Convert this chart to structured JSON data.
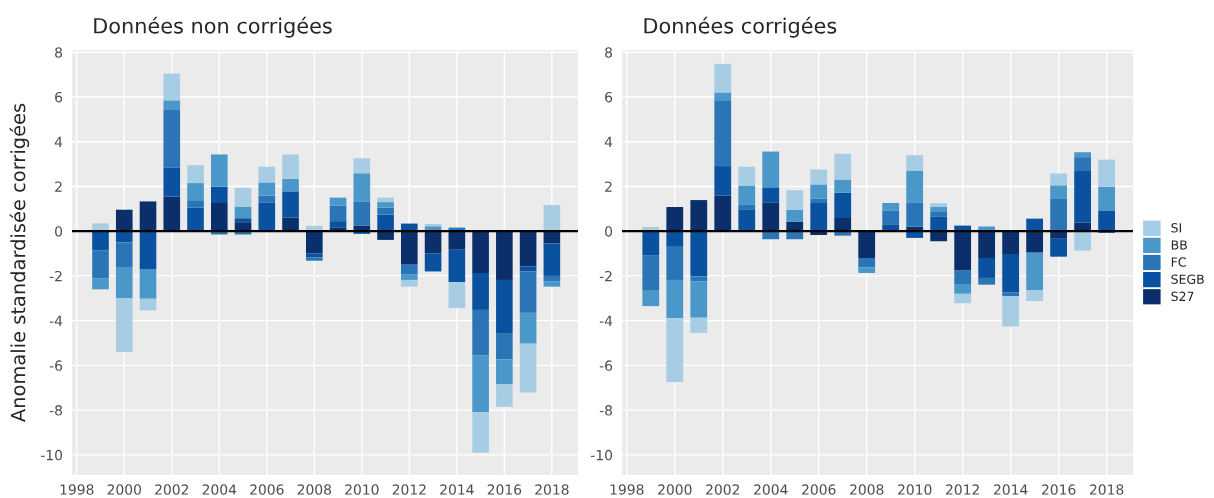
{
  "chart_data": [
    {
      "type": "bar",
      "title": "Données non corrigées",
      "ylabel": "Anomalie standardisée corrigées",
      "stacked": true,
      "grid": true,
      "x": [
        1999,
        2000,
        2001,
        2002,
        2003,
        2004,
        2005,
        2006,
        2007,
        2008,
        2009,
        2010,
        2011,
        2012,
        2013,
        2014,
        2015,
        2016,
        2017,
        2018
      ],
      "xlim": [
        1997.8,
        2019.1
      ],
      "xticks": [
        1998,
        2000,
        2002,
        2004,
        2006,
        2008,
        2010,
        2012,
        2014,
        2016,
        2018
      ],
      "ylim": [
        -10.9,
        8.1
      ],
      "yticks": [
        -10,
        -8,
        -6,
        -4,
        -2,
        0,
        2,
        4,
        6,
        8
      ],
      "ref_lines": [
        {
          "axis": "y",
          "value": 0,
          "color": "#000000"
        }
      ],
      "series": [
        {
          "color": "#0b2f6b",
          "values": [
            0,
            0.96,
            1.33,
            1.55,
            0,
            1.26,
            0.4,
            null,
            0.61,
            -1.0,
            0.15,
            0.24,
            -0.39,
            -1.5,
            -1.0,
            -0.83,
            -1.87,
            -2.18,
            -1.57,
            -0.55
          ]
        },
        {
          "color": "#0a52a0",
          "values": [
            -0.85,
            -0.5,
            -1.72,
            1.3,
            1.05,
            0.73,
            0.18,
            1.29,
            1.17,
            -0.17,
            0.3,
            -0.12,
            0.74,
            0.34,
            -0.8,
            -1.45,
            -1.65,
            -2.4,
            -0.23,
            -1.45
          ]
        },
        {
          "color": "#2b75b6",
          "values": [
            -1.25,
            -1.1,
            0,
            2.6,
            0.3,
            -0.15,
            -0.15,
            0.3,
            0,
            -0.15,
            0.7,
            1.07,
            0.31,
            -0.42,
            0,
            0.16,
            -2.03,
            -1.15,
            -1.85,
            -0.24
          ]
        },
        {
          "color": "#4a97c9",
          "values": [
            -0.5,
            -1.4,
            -1.3,
            0.4,
            0.8,
            1.44,
            0.5,
            0.59,
            0.56,
            0,
            0.35,
            1.28,
            0.25,
            -0.26,
            0.22,
            0,
            -2.55,
            -1.12,
            -1.38,
            -0.24
          ]
        },
        {
          "color": "#a6cde3",
          "values": [
            0.35,
            -2.4,
            -0.52,
            1.2,
            0.8,
            0,
            0.86,
            0.7,
            1.09,
            0.24,
            0,
            0.67,
            0.2,
            -0.3,
            0.1,
            -1.16,
            -1.8,
            -1.0,
            -2.18,
            1.17
          ]
        }
      ]
    },
    {
      "type": "bar",
      "title": "Données corrigées",
      "stacked": true,
      "grid": true,
      "legend": "right",
      "x": [
        1999,
        2000,
        2001,
        2002,
        2003,
        2004,
        2005,
        2006,
        2007,
        2008,
        2009,
        2010,
        2011,
        2012,
        2013,
        2014,
        2015,
        2016,
        2017,
        2018
      ],
      "xlim": [
        1997.8,
        2019.1
      ],
      "xticks": [
        1998,
        2000,
        2002,
        2004,
        2006,
        2008,
        2010,
        2012,
        2014,
        2016,
        2018
      ],
      "ylim": [
        -10.9,
        8.1
      ],
      "yticks": [
        -10,
        -8,
        -6,
        -4,
        -2,
        0,
        2,
        4,
        6,
        8
      ],
      "ref_lines": [
        {
          "axis": "y",
          "value": 0,
          "color": "#000000"
        }
      ],
      "series": [
        {
          "name": "S27",
          "color": "#0b2f6b",
          "values": [
            0,
            1.08,
            1.39,
            1.59,
            0,
            1.29,
            0.43,
            -0.17,
            0.59,
            -1.2,
            0,
            0.2,
            -0.45,
            -1.74,
            -1.2,
            -1.02,
            -0.96,
            -0.34,
            0.39,
            -0.07
          ]
        },
        {
          "name": "SEGB",
          "color": "#0a52a0",
          "values": [
            -1.07,
            -0.7,
            -2.02,
            1.32,
            0.95,
            0.67,
            0,
            1.26,
            1.13,
            0,
            0.31,
            -0.3,
            0.64,
            0.25,
            -0.89,
            -1.71,
            0.56,
            -0.8,
            2.3,
            0.93
          ]
        },
        {
          "name": "FC",
          "color": "#2b75b6",
          "values": [
            -1.56,
            -1.48,
            -0.22,
            2.94,
            0.25,
            -0.36,
            -0.36,
            0.19,
            -0.2,
            -0.42,
            0.62,
            1.09,
            0.25,
            -0.62,
            -0.3,
            -0.18,
            0,
            1.47,
            0.62,
            0
          ]
        },
        {
          "name": "BB",
          "color": "#4a97c9",
          "values": [
            -0.72,
            -1.71,
            -1.63,
            0.35,
            0.82,
            1.6,
            0.52,
            0.64,
            0.59,
            -0.25,
            0.33,
            1.42,
            0.21,
            -0.44,
            0.21,
            0,
            -1.67,
            0.58,
            0.22,
            1.06
          ]
        },
        {
          "name": "SI",
          "color": "#a6cde3",
          "values": [
            0.19,
            -2.85,
            -0.68,
            1.28,
            0.86,
            0,
            0.88,
            0.67,
            1.15,
            0,
            0,
            0.69,
            0.15,
            -0.42,
            0,
            -1.35,
            -0.49,
            0.53,
            -0.87,
            1.21
          ]
        }
      ]
    }
  ]
}
